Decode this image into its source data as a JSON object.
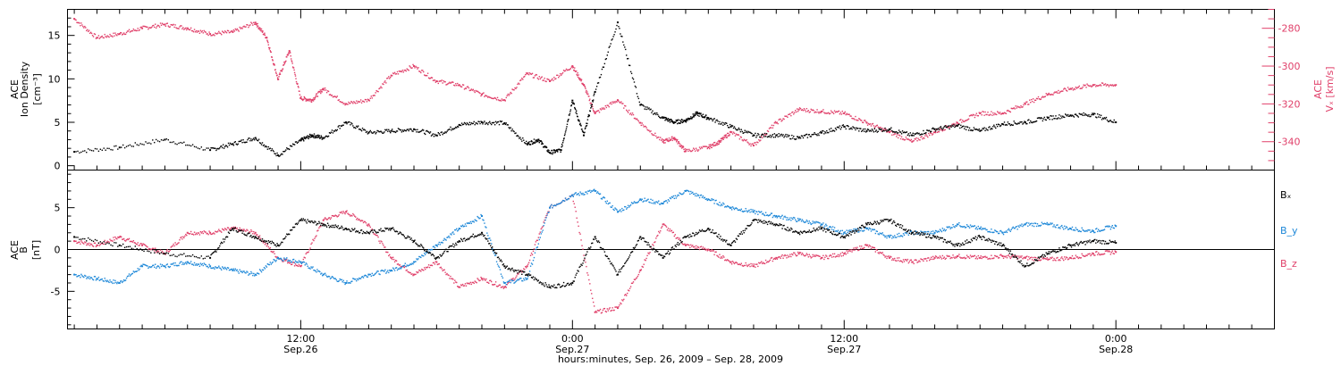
{
  "colors": {
    "black": "#000000",
    "magenta": "#e0406a",
    "blue": "#1e88d8"
  },
  "xlabel": "hours:minutes, Sep. 26, 2009 – Sep. 28, 2009",
  "x_ticks": [
    {
      "hour": 12,
      "label": "12:00",
      "sub": "Sep.26"
    },
    {
      "hour": 24,
      "label": "0:00",
      "sub": "Sep.27"
    },
    {
      "hour": 36,
      "label": "12:00",
      "sub": "Sep.27"
    },
    {
      "hour": 48,
      "label": "0:00",
      "sub": "Sep.28"
    }
  ],
  "chart_data": [
    {
      "type": "scatter",
      "panel": "top",
      "x_unit": "hours since 2009-09-26 00:00",
      "xlim": [
        1.7,
        55
      ],
      "left_axis": {
        "label_lines": [
          "ACE",
          "Ion Density",
          "[cm⁻³]"
        ],
        "ylim": [
          -0.5,
          18
        ],
        "ticks": [
          0,
          5,
          10,
          15
        ]
      },
      "right_axis": {
        "label_lines": [
          "ACE",
          "Vₓ [km/s]"
        ],
        "ylim": [
          -355,
          -270
        ],
        "ticks": [
          -280,
          -300,
          -320,
          -340
        ]
      },
      "series": [
        {
          "color": "black",
          "axis": "left",
          "x": [
            2,
            4,
            6,
            8,
            9,
            10,
            11,
            12,
            12.5,
            13,
            14,
            15,
            16,
            17,
            18,
            19,
            20,
            21,
            22,
            22.5,
            23,
            23.5,
            24,
            24.5,
            25,
            26,
            27,
            28,
            28.5,
            29,
            29.5,
            30,
            31,
            32,
            33,
            34,
            35,
            36,
            37,
            38,
            39,
            40,
            41,
            42,
            43,
            44,
            45,
            46,
            47,
            48
          ],
          "y": [
            1.6,
            2.1,
            3.0,
            1.8,
            2.5,
            3.2,
            1.2,
            2.9,
            3.5,
            3.2,
            5.0,
            3.8,
            4.0,
            4.2,
            3.5,
            4.7,
            5.0,
            4.9,
            2.5,
            3.0,
            1.5,
            1.8,
            7.5,
            3.5,
            8.5,
            16.5,
            7.0,
            5.5,
            5.0,
            5.2,
            6.0,
            5.5,
            4.5,
            3.5,
            3.5,
            3.2,
            3.8,
            4.5,
            4.0,
            4.2,
            3.5,
            4.2,
            4.6,
            4.0,
            4.8,
            5.0,
            5.5,
            5.8,
            5.9,
            5.0
          ]
        },
        {
          "color": "magenta",
          "axis": "right",
          "x": [
            2,
            3,
            4,
            5,
            6,
            7,
            8,
            9,
            10,
            10.5,
            11,
            11.5,
            12,
            12.5,
            13,
            14,
            15,
            16,
            17,
            18,
            19,
            20,
            21,
            22,
            23,
            24,
            24.5,
            25,
            26,
            27,
            28,
            28.5,
            29,
            30,
            30.5,
            31,
            32,
            33,
            34,
            35,
            36,
            37,
            38,
            39,
            40,
            41,
            42,
            43,
            44,
            45,
            46,
            47,
            48
          ],
          "y": [
            -275,
            -285,
            -283,
            -280,
            -278,
            -280,
            -283,
            -282,
            -277,
            -285,
            -307,
            -292,
            -317,
            -318,
            -312,
            -320,
            -318,
            -305,
            -300,
            -308,
            -310,
            -315,
            -318,
            -304,
            -308,
            -300,
            -310,
            -325,
            -318,
            -330,
            -340,
            -338,
            -345,
            -343,
            -340,
            -335,
            -342,
            -330,
            -323,
            -324,
            -325,
            -330,
            -335,
            -340,
            -335,
            -330,
            -325,
            -325,
            -320,
            -315,
            -312,
            -310,
            -310
          ]
        }
      ]
    },
    {
      "type": "scatter",
      "panel": "bottom",
      "x_unit": "hours since 2009-09-26 00:00",
      "xlim": [
        1.7,
        55
      ],
      "y_axis": {
        "label_lines": [
          "ACE",
          "B",
          "[nT]"
        ],
        "ylim": [
          -9.5,
          9.5
        ],
        "ticks": [
          -5,
          0,
          5
        ]
      },
      "series": [
        {
          "name": "Bₓ",
          "color": "black",
          "x": [
            2,
            4,
            6,
            8,
            9,
            10,
            11,
            12,
            13,
            14,
            15,
            16,
            17,
            18,
            19,
            20,
            21,
            22,
            23,
            24,
            25,
            26,
            27,
            28,
            29,
            30,
            31,
            32,
            33,
            34,
            35,
            36,
            37,
            38,
            39,
            40,
            41,
            42,
            43,
            44,
            45,
            46,
            47,
            48
          ],
          "y": [
            1.5,
            0.5,
            -0.5,
            -1.0,
            2.5,
            1.5,
            0.5,
            3.5,
            3.0,
            2.5,
            2.0,
            2.5,
            1.0,
            -1.0,
            1.0,
            2.0,
            -2.0,
            -3.0,
            -4.5,
            -4.0,
            1.5,
            -3.0,
            1.5,
            -1.0,
            1.5,
            2.5,
            0.5,
            3.5,
            3.0,
            2.0,
            2.5,
            1.5,
            3.0,
            3.5,
            2.0,
            1.5,
            0.5,
            1.5,
            0.5,
            -2.0,
            -0.5,
            0.5,
            1.0,
            0.8
          ]
        },
        {
          "name": "B_y",
          "color": "blue",
          "x": [
            2,
            3,
            4,
            5,
            6,
            7,
            8,
            9,
            10,
            11,
            12,
            13,
            14,
            15,
            16,
            17,
            18,
            19,
            20,
            21,
            22,
            23,
            24,
            25,
            26,
            27,
            28,
            29,
            30,
            31,
            32,
            33,
            34,
            35,
            36,
            37,
            38,
            39,
            40,
            41,
            42,
            43,
            44,
            45,
            46,
            47,
            48
          ],
          "y": [
            -3.0,
            -3.5,
            -4.0,
            -2.0,
            -2.0,
            -1.5,
            -2.0,
            -2.5,
            -3.0,
            -1.0,
            -1.5,
            -3.0,
            -4.0,
            -3.0,
            -2.5,
            -1.5,
            0.5,
            2.5,
            4.0,
            -4.0,
            -3.5,
            5.0,
            6.5,
            7.0,
            4.5,
            6.0,
            5.5,
            7.0,
            6.0,
            5.0,
            4.5,
            4.0,
            3.5,
            3.0,
            2.0,
            2.5,
            1.5,
            2.0,
            2.0,
            3.0,
            2.5,
            2.0,
            3.0,
            3.0,
            2.5,
            2.2,
            2.8
          ]
        },
        {
          "name": "B_z",
          "color": "magenta",
          "x": [
            2,
            3,
            4,
            5,
            6,
            7,
            8,
            9,
            10,
            11,
            12,
            13,
            14,
            15,
            16,
            17,
            18,
            19,
            20,
            21,
            22,
            23,
            24,
            25,
            26,
            27,
            28,
            29,
            30,
            31,
            32,
            33,
            34,
            35,
            36,
            37,
            38,
            39,
            40,
            41,
            42,
            43,
            44,
            45,
            46,
            47,
            48
          ],
          "y": [
            1.0,
            0.5,
            1.5,
            0.5,
            -0.5,
            2.0,
            2.0,
            2.5,
            2.0,
            -1.0,
            -2.0,
            3.5,
            4.5,
            3.0,
            -1.0,
            -3.0,
            -1.5,
            -4.5,
            -3.5,
            -4.5,
            -2.0,
            5.0,
            6.5,
            -7.5,
            -7.0,
            -2.5,
            3.0,
            0.5,
            0.0,
            -1.5,
            -2.0,
            -1.0,
            -0.5,
            -1.0,
            -0.5,
            0.5,
            -1.0,
            -1.5,
            -1.0,
            -0.8,
            -1.0,
            -0.8,
            -1.0,
            -1.2,
            -1.0,
            -0.5,
            -0.3
          ]
        }
      ]
    }
  ]
}
